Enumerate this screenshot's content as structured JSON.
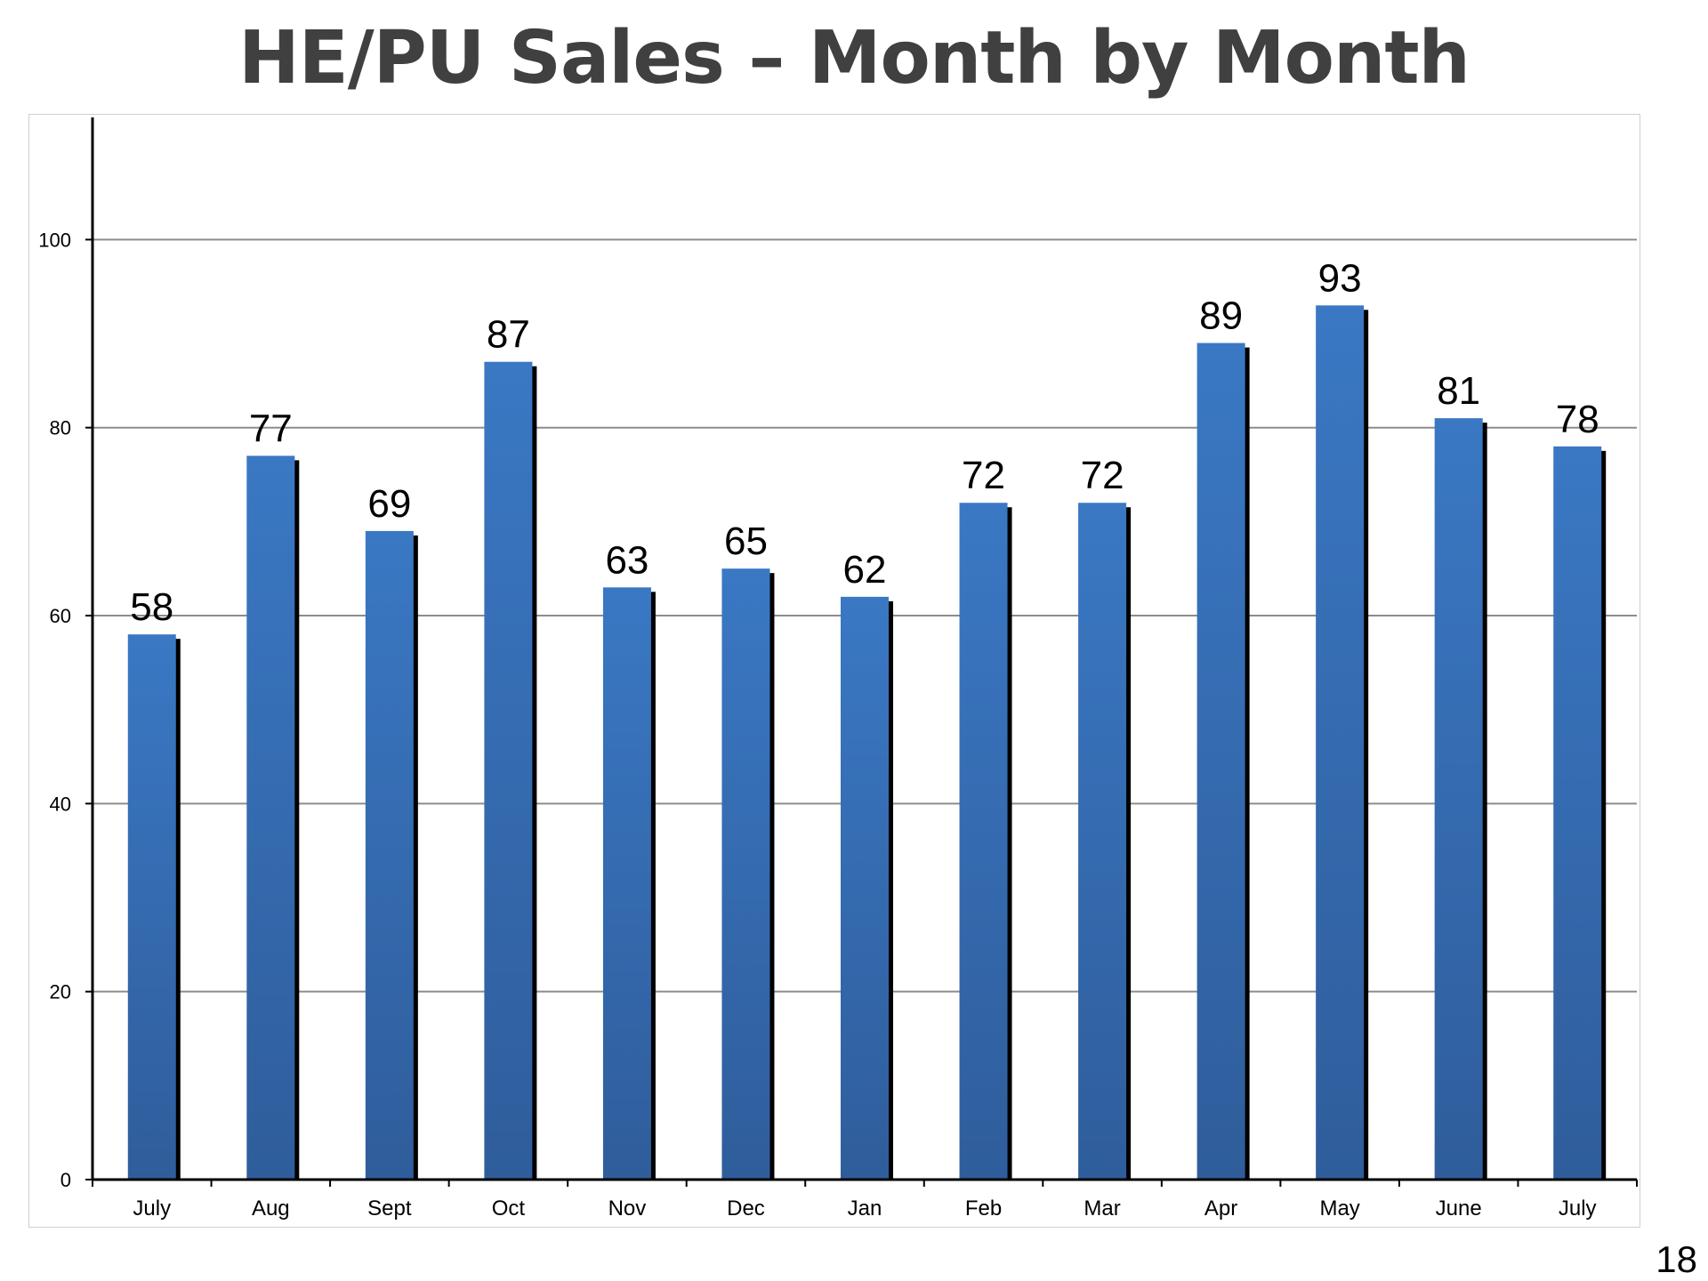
{
  "slide": {
    "title": "HE/PU Sales – Month by Month",
    "page_number": "18"
  },
  "chart_data": {
    "type": "bar",
    "title": "",
    "xlabel": "",
    "ylabel": "",
    "categories": [
      "July",
      "Aug",
      "Sept",
      "Oct",
      "Nov",
      "Dec",
      "Jan",
      "Feb",
      "Mar",
      "Apr",
      "May",
      "June",
      "July"
    ],
    "values": [
      58,
      77,
      69,
      87,
      63,
      65,
      62,
      72,
      72,
      89,
      93,
      81,
      78
    ],
    "ylim": [
      0,
      113
    ],
    "yticks": [
      0,
      20,
      40,
      60,
      80,
      100
    ],
    "grid": true,
    "data_labels": true,
    "bar_color": "#3a78c4",
    "bar_color_dark": "#2f5d9b"
  }
}
